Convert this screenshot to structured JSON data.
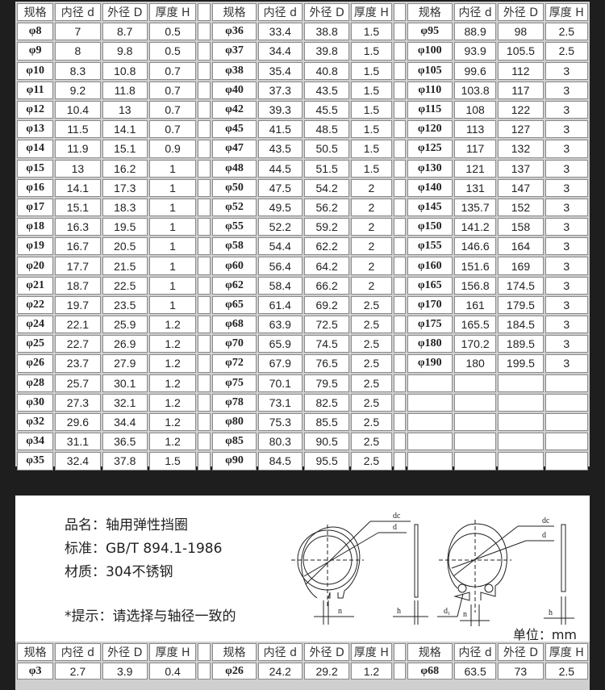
{
  "headers": [
    "规格",
    "内径 d",
    "外径 D",
    "厚度 H"
  ],
  "top_table": {
    "group1": [
      [
        "φ8",
        "7",
        "8.7",
        "0.5"
      ],
      [
        "φ9",
        "8",
        "9.8",
        "0.5"
      ],
      [
        "φ10",
        "8.3",
        "10.8",
        "0.7"
      ],
      [
        "φ11",
        "9.2",
        "11.8",
        "0.7"
      ],
      [
        "φ12",
        "10.4",
        "13",
        "0.7"
      ],
      [
        "φ13",
        "11.5",
        "14.1",
        "0.7"
      ],
      [
        "φ14",
        "11.9",
        "15.1",
        "0.9"
      ],
      [
        "φ15",
        "13",
        "16.2",
        "1"
      ],
      [
        "φ16",
        "14.1",
        "17.3",
        "1"
      ],
      [
        "φ17",
        "15.1",
        "18.3",
        "1"
      ],
      [
        "φ18",
        "16.3",
        "19.5",
        "1"
      ],
      [
        "φ19",
        "16.7",
        "20.5",
        "1"
      ],
      [
        "φ20",
        "17.7",
        "21.5",
        "1"
      ],
      [
        "φ21",
        "18.7",
        "22.5",
        "1"
      ],
      [
        "φ22",
        "19.7",
        "23.5",
        "1"
      ],
      [
        "φ24",
        "22.1",
        "25.9",
        "1.2"
      ],
      [
        "φ25",
        "22.7",
        "26.9",
        "1.2"
      ],
      [
        "φ26",
        "23.7",
        "27.9",
        "1.2"
      ],
      [
        "φ28",
        "25.7",
        "30.1",
        "1.2"
      ],
      [
        "φ30",
        "27.3",
        "32.1",
        "1.2"
      ],
      [
        "φ32",
        "29.6",
        "34.4",
        "1.2"
      ],
      [
        "φ34",
        "31.1",
        "36.5",
        "1.2"
      ],
      [
        "φ35",
        "32.4",
        "37.8",
        "1.5"
      ]
    ],
    "group2": [
      [
        "φ36",
        "33.4",
        "38.8",
        "1.5"
      ],
      [
        "φ37",
        "34.4",
        "39.8",
        "1.5"
      ],
      [
        "φ38",
        "35.4",
        "40.8",
        "1.5"
      ],
      [
        "φ40",
        "37.3",
        "43.5",
        "1.5"
      ],
      [
        "φ42",
        "39.3",
        "45.5",
        "1.5"
      ],
      [
        "φ45",
        "41.5",
        "48.5",
        "1.5"
      ],
      [
        "φ47",
        "43.5",
        "50.5",
        "1.5"
      ],
      [
        "φ48",
        "44.5",
        "51.5",
        "1.5"
      ],
      [
        "φ50",
        "47.5",
        "54.2",
        "2"
      ],
      [
        "φ52",
        "49.5",
        "56.2",
        "2"
      ],
      [
        "φ55",
        "52.2",
        "59.2",
        "2"
      ],
      [
        "φ58",
        "54.4",
        "62.2",
        "2"
      ],
      [
        "φ60",
        "56.4",
        "64.2",
        "2"
      ],
      [
        "φ62",
        "58.4",
        "66.2",
        "2"
      ],
      [
        "φ65",
        "61.4",
        "69.2",
        "2.5"
      ],
      [
        "φ68",
        "63.9",
        "72.5",
        "2.5"
      ],
      [
        "φ70",
        "65.9",
        "74.5",
        "2.5"
      ],
      [
        "φ72",
        "67.9",
        "76.5",
        "2.5"
      ],
      [
        "φ75",
        "70.1",
        "79.5",
        "2.5"
      ],
      [
        "φ78",
        "73.1",
        "82.5",
        "2.5"
      ],
      [
        "φ80",
        "75.3",
        "85.5",
        "2.5"
      ],
      [
        "φ85",
        "80.3",
        "90.5",
        "2.5"
      ],
      [
        "φ90",
        "84.5",
        "95.5",
        "2.5"
      ]
    ],
    "group3": [
      [
        "φ95",
        "88.9",
        "98",
        "2.5"
      ],
      [
        "φ100",
        "93.9",
        "105.5",
        "2.5"
      ],
      [
        "φ105",
        "99.6",
        "112",
        "3"
      ],
      [
        "φ110",
        "103.8",
        "117",
        "3"
      ],
      [
        "φ115",
        "108",
        "122",
        "3"
      ],
      [
        "φ120",
        "113",
        "127",
        "3"
      ],
      [
        "φ125",
        "117",
        "132",
        "3"
      ],
      [
        "φ130",
        "121",
        "137",
        "3"
      ],
      [
        "φ140",
        "131",
        "147",
        "3"
      ],
      [
        "φ145",
        "135.7",
        "152",
        "3"
      ],
      [
        "φ150",
        "141.2",
        "158",
        "3"
      ],
      [
        "φ155",
        "146.6",
        "164",
        "3"
      ],
      [
        "φ160",
        "151.6",
        "169",
        "3"
      ],
      [
        "φ165",
        "156.8",
        "174.5",
        "3"
      ],
      [
        "φ170",
        "161",
        "179.5",
        "3"
      ],
      [
        "φ175",
        "165.5",
        "184.5",
        "3"
      ],
      [
        "φ180",
        "170.2",
        "189.5",
        "3"
      ],
      [
        "φ190",
        "180",
        "199.5",
        "3"
      ]
    ]
  },
  "info": {
    "name": "品名：轴用弹性挡圈",
    "standard": "标准：GB/T 894.1-1986",
    "material": "材质：304不锈钢",
    "tip": "*提示：请选择与轴径一致的",
    "unit": "单位：mm",
    "diagram_labels": {
      "dc": "dc",
      "d": "d",
      "n": "n",
      "h": "h",
      "d1": "d₁"
    }
  },
  "bottom_table": {
    "group1": [
      [
        "φ3",
        "2.7",
        "3.9",
        "0.4"
      ]
    ],
    "group2": [
      [
        "φ26",
        "24.2",
        "29.2",
        "1.2"
      ]
    ],
    "group3": [
      [
        "φ68",
        "63.5",
        "73",
        "2.5"
      ]
    ]
  }
}
